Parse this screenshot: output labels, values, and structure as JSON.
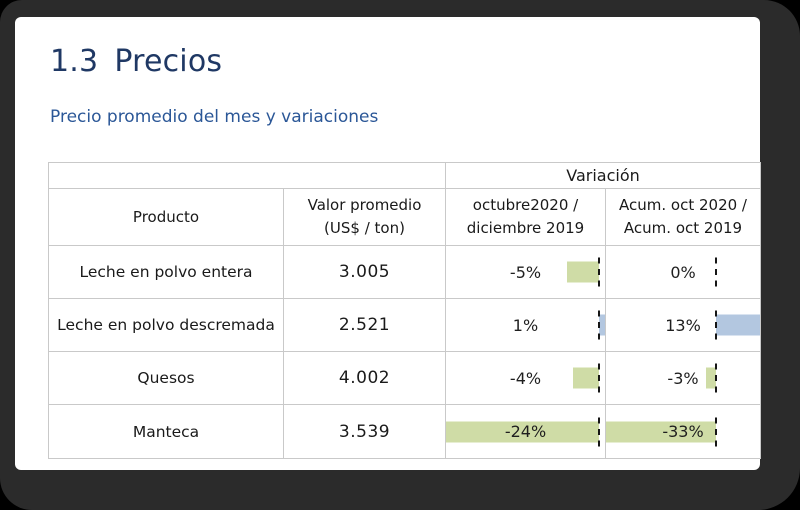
{
  "colors": {
    "frame": "#2b2b2b",
    "page_bg": "#ffffff",
    "title": "#1f3864",
    "subtitle": "#2b5797",
    "text": "#1a1a1a",
    "table_border": "#c9c9c9",
    "value_green": "#92d050",
    "bar_negative": "#cfdca6",
    "bar_positive": "#b3c7e0",
    "axis": "#161616"
  },
  "page": {
    "title_number": "1.3",
    "title": "Precios",
    "subtitle": "Precio promedio del mes y variaciones"
  },
  "table": {
    "variation_header": "Variación",
    "columns": {
      "product": "Producto",
      "value_line1": "Valor promedio",
      "value_line2": "(US$ / ton)",
      "var1_line1": "octubre2020 /",
      "var1_line2": "diciembre 2019",
      "var2_line1": "Acum. oct 2020 /",
      "var2_line2": "Acum. oct 2019"
    },
    "variation_axes": [
      {
        "min": -24,
        "max": 1
      },
      {
        "min": -33,
        "max": 13
      }
    ],
    "rows": [
      {
        "product": "Leche en polvo entera",
        "value": "3.005",
        "variations": [
          {
            "label": "-5%",
            "value": -5
          },
          {
            "label": "0%",
            "value": 0
          }
        ]
      },
      {
        "product": "Leche en polvo descremada",
        "value": "2.521",
        "variations": [
          {
            "label": "1%",
            "value": 1
          },
          {
            "label": "13%",
            "value": 13
          }
        ]
      },
      {
        "product": "Quesos",
        "value": "4.002",
        "variations": [
          {
            "label": "-4%",
            "value": -4
          },
          {
            "label": "-3%",
            "value": -3
          }
        ]
      },
      {
        "product": "Manteca",
        "value": "3.539",
        "variations": [
          {
            "label": "-24%",
            "value": -24
          },
          {
            "label": "-33%",
            "value": -33
          }
        ]
      }
    ]
  },
  "chart_data": {
    "type": "table",
    "title": "Precio promedio del mes y variaciones",
    "columns": [
      "Producto",
      "Valor promedio (US$ / ton)",
      "Variación octubre2020 / diciembre 2019",
      "Variación Acum. oct 2020 / Acum. oct 2019"
    ],
    "rows": [
      [
        "Leche en polvo entera",
        3005,
        -5,
        0
      ],
      [
        "Leche en polvo descremada",
        2521,
        1,
        13
      ],
      [
        "Quesos",
        4002,
        -4,
        -3
      ],
      [
        "Manteca",
        3539,
        -24,
        -33
      ]
    ],
    "bar_axis_ranges": [
      [
        -24,
        1
      ],
      [
        -33,
        13
      ]
    ],
    "bar_colors": {
      "negative": "#cfdca6",
      "positive": "#b3c7e0"
    }
  }
}
